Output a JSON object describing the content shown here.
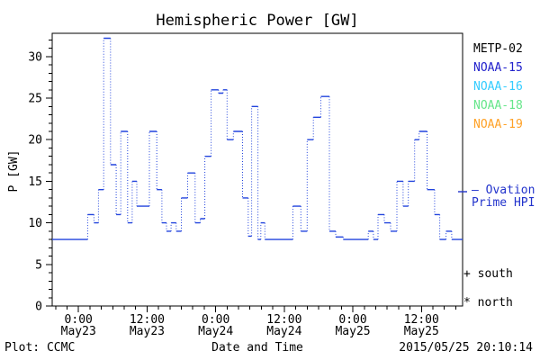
{
  "title": "Hemispheric Power [GW]",
  "colors": {
    "background": "#ffffff",
    "axis": "#000000",
    "data_line": "#2244dd",
    "model_text": "#2233cc"
  },
  "legend": {
    "satellites": [
      {
        "label": "METP-02",
        "color": "#000000"
      },
      {
        "label": "NOAA-15",
        "color": "#2222cc"
      },
      {
        "label": "NOAA-16",
        "color": "#33ccff"
      },
      {
        "label": "NOAA-18",
        "color": "#66e68a"
      },
      {
        "label": "NOAA-19",
        "color": "#ffa126"
      }
    ],
    "model_line1": "— Ovation",
    "model_line2": "Prime HPI",
    "south_label": "+ south",
    "north_label": "* north"
  },
  "footer": {
    "left": "Plot: CCMC",
    "center": "Date and Time",
    "right": "2015/05/25 20:10:14"
  },
  "chart_data": {
    "type": "line",
    "style": "step",
    "title": "Hemispheric Power [GW]",
    "xlabel": "Date and Time",
    "ylabel": "P [GW]",
    "ylim": [
      0,
      32.8
    ],
    "y_major_ticks": [
      0,
      5,
      10,
      15,
      20,
      25,
      30
    ],
    "y_minor_step": 1,
    "grid": false,
    "legend_position": "right",
    "x_hours_range": [
      -4.6,
      67.2
    ],
    "x_minor_step_hours": 2,
    "x_major_ticks": [
      {
        "hour": 0,
        "time": "0:00",
        "date": "May23"
      },
      {
        "hour": 12,
        "time": "12:00",
        "date": "May23"
      },
      {
        "hour": 24,
        "time": "0:00",
        "date": "May24"
      },
      {
        "hour": 36,
        "time": "12:00",
        "date": "May24"
      },
      {
        "hour": 48,
        "time": "0:00",
        "date": "May25"
      },
      {
        "hour": 60,
        "time": "12:00",
        "date": "May25"
      }
    ],
    "series": [
      {
        "name": "Ovation Prime HPI",
        "color": "#2244dd",
        "units": "GW",
        "hours_from_may23_0000_and_gw_steps": [
          [
            -4.6,
            8
          ],
          [
            1.6,
            11
          ],
          [
            2.7,
            10
          ],
          [
            3.5,
            14
          ],
          [
            4.4,
            32.2
          ],
          [
            5.6,
            17
          ],
          [
            6.6,
            11
          ],
          [
            7.4,
            21
          ],
          [
            8.6,
            10
          ],
          [
            9.4,
            15
          ],
          [
            10.2,
            12
          ],
          [
            12.4,
            21
          ],
          [
            13.7,
            14
          ],
          [
            14.6,
            10
          ],
          [
            15.4,
            9
          ],
          [
            16.2,
            10
          ],
          [
            17.1,
            9
          ],
          [
            18.0,
            13
          ],
          [
            19.1,
            16
          ],
          [
            20.4,
            10
          ],
          [
            21.3,
            10.5
          ],
          [
            22.1,
            18
          ],
          [
            23.2,
            26
          ],
          [
            24.5,
            25.6
          ],
          [
            25.3,
            26
          ],
          [
            26.0,
            20
          ],
          [
            27.1,
            21
          ],
          [
            28.7,
            13
          ],
          [
            29.7,
            8.4
          ],
          [
            30.3,
            24
          ],
          [
            31.4,
            8
          ],
          [
            31.9,
            10
          ],
          [
            32.6,
            8
          ],
          [
            37.5,
            12
          ],
          [
            38.9,
            9
          ],
          [
            40.0,
            20
          ],
          [
            41.1,
            22.7
          ],
          [
            42.4,
            25.2
          ],
          [
            43.9,
            9
          ],
          [
            45.0,
            8.3
          ],
          [
            46.3,
            8
          ],
          [
            50.7,
            9
          ],
          [
            51.6,
            8
          ],
          [
            52.4,
            11
          ],
          [
            53.5,
            10
          ],
          [
            54.6,
            9
          ],
          [
            55.7,
            15
          ],
          [
            56.8,
            12
          ],
          [
            57.7,
            15
          ],
          [
            58.8,
            20
          ],
          [
            59.6,
            21
          ],
          [
            61.0,
            14
          ],
          [
            62.3,
            11
          ],
          [
            63.2,
            8
          ],
          [
            64.3,
            9
          ],
          [
            65.3,
            8
          ]
        ],
        "x_end_hour": 67.2
      }
    ]
  }
}
